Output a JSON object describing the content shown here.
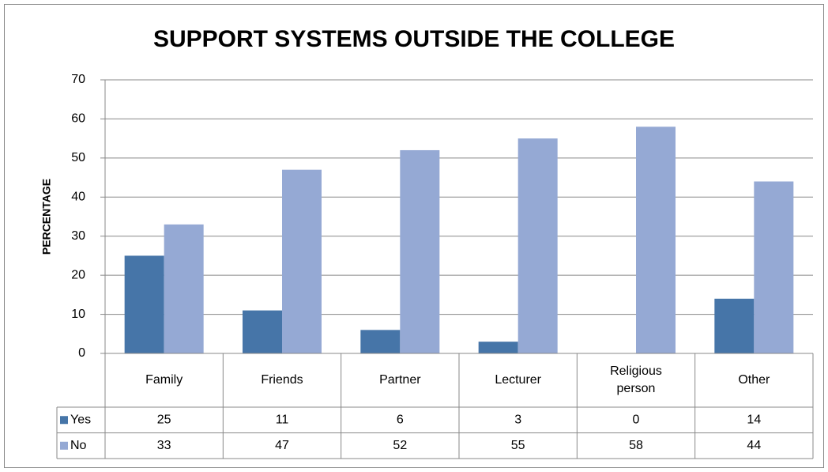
{
  "chart_data": {
    "type": "bar",
    "title": "SUPPORT SYSTEMS OUTSIDE THE COLLEGE",
    "y_label": "PERCENTAGE",
    "categories": [
      "Family",
      "Friends",
      "Partner",
      "Lecturer",
      "Religious person",
      "Other"
    ],
    "series": [
      {
        "name": "Yes",
        "color": "#4675a8",
        "values": [
          25,
          11,
          6,
          3,
          0,
          14
        ]
      },
      {
        "name": "No",
        "color": "#95a9d4",
        "values": [
          33,
          47,
          52,
          55,
          58,
          44
        ]
      }
    ],
    "ylim": [
      0,
      70
    ],
    "yticks": [
      0,
      10,
      20,
      30,
      40,
      50,
      60,
      70
    ],
    "grid": true,
    "data_table": true
  }
}
